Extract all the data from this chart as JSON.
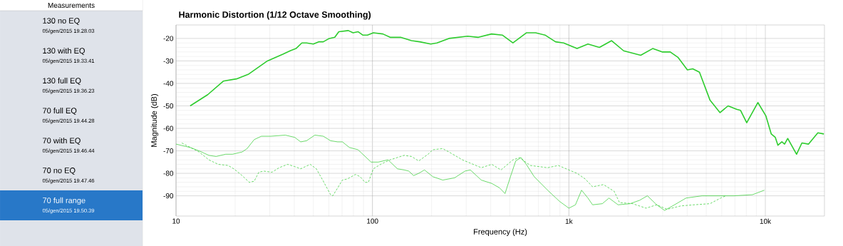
{
  "chart_data": [
    {
      "type": "line",
      "title": "Harmonic Distortion (1/12 Octave Smoothing)",
      "xlabel": "Frequency (Hz)",
      "ylabel": "Magnitude (dB)",
      "log": "x",
      "grid": true,
      "marker": "none",
      "xlim": [
        10,
        20000
      ],
      "ylim": [
        -99,
        -14
      ],
      "xticks": [
        10,
        100,
        {
          "value": 1000,
          "label": "1k"
        },
        {
          "value": 10000,
          "label": "10k"
        }
      ],
      "yticks": [
        -90,
        -80,
        -70,
        -60,
        -50,
        -40,
        -30,
        -20
      ],
      "series": [
        {
          "color": "#2ecc2e",
          "line_style": "solid",
          "x": [
            11.8,
            14.5,
            17.4,
            20.3,
            23.3,
            29.2,
            35,
            38.1,
            40.8,
            43.7,
            46.2,
            50,
            53.2,
            56.2,
            60.3,
            64.3,
            67.4,
            75.4,
            79.7,
            84.4,
            89.2,
            94.3,
            101,
            113,
            123,
            139,
            158,
            174,
            198,
            213,
            245,
            305,
            346,
            404,
            458,
            519,
            607,
            677,
            756,
            855,
            940,
            1100,
            1250,
            1430,
            1650,
            1900,
            2320,
            2670,
            2980,
            3280,
            3600,
            4010,
            4270,
            4620,
            5230,
            5880,
            6460,
            7140,
            7480,
            8040,
            9160,
            10070,
            10720,
            11240,
            11590,
            12140,
            12530,
            13000,
            14420,
            15350,
            16600,
            18510,
            19860
          ],
          "values": [
            -50,
            -45,
            -39,
            -38,
            -36,
            -30,
            -27,
            -25.5,
            -24.5,
            -22,
            -22,
            -22.5,
            -21.5,
            -21.5,
            -20,
            -19.5,
            -17,
            -16.5,
            -17.5,
            -17,
            -18.5,
            -18.5,
            -17.5,
            -18,
            -19.5,
            -19.5,
            -21,
            -21.5,
            -22.5,
            -22,
            -20,
            -19,
            -19.5,
            -18,
            -18.5,
            -22,
            -17.5,
            -17.5,
            -18.5,
            -21.5,
            -22,
            -24.5,
            -22.5,
            -24,
            -21,
            -25.5,
            -27.5,
            -24.5,
            -26,
            -26,
            -28.5,
            -34,
            -33.5,
            -35,
            -47.5,
            -53,
            -50,
            -51.5,
            -52,
            -57.5,
            -48.5,
            -54.5,
            -62.5,
            -64,
            -67.5,
            -66,
            -67,
            -64.5,
            -71.5,
            -66.5,
            -67,
            -62,
            -62.5
          ]
        },
        {
          "color": "#2ecc2e",
          "line_style": "solid",
          "x": [
            10,
            11.8,
            13.1,
            14.7,
            16,
            17.9,
            19.4,
            21.7,
            23,
            25,
            27.2,
            30.4,
            36,
            40.2,
            43.1,
            46.2,
            50.9,
            56.2,
            61.2,
            66.5,
            70.3,
            76.3,
            84.4,
            98.4,
            107,
            120,
            134,
            145,
            153,
            162,
            172,
            184,
            203,
            228,
            262,
            296,
            315,
            358,
            405,
            444,
            473,
            504,
            536,
            570,
            607,
            666,
            779,
            897,
            1000,
            1080,
            1160,
            1250,
            1320,
            1480,
            1600,
            1780,
            2050,
            2290,
            2510,
            2800,
            3070,
            3370,
            3950,
            4760,
            5560,
            6920,
            8600,
            9890
          ],
          "values": [
            -67,
            -68.5,
            -70,
            -72,
            -72.5,
            -71.5,
            -71.5,
            -70.5,
            -69,
            -65,
            -63.5,
            -63.5,
            -63,
            -64,
            -66,
            -65.5,
            -63,
            -63.5,
            -65.5,
            -66,
            -66,
            -68.5,
            -69.5,
            -75,
            -75,
            -74,
            -78,
            -78.5,
            -79,
            -81,
            -80,
            -78.5,
            -81.5,
            -83,
            -82,
            -79,
            -78.5,
            -83,
            -84.5,
            -86.5,
            -89,
            -81.5,
            -74.5,
            -73,
            -76,
            -81.5,
            -87.5,
            -92.5,
            -95.5,
            -94,
            -87.5,
            -91,
            -94,
            -93.5,
            -91,
            -94,
            -93.5,
            -92,
            -90,
            -94,
            -96.5,
            -94.5,
            -91,
            -90,
            -90,
            -90,
            -89.5,
            -87.5
          ]
        },
        {
          "color": "#2ecc2e",
          "line_style": "dashed",
          "x": [
            10.7,
            13.1,
            14.7,
            16.4,
            18.4,
            19.7,
            21.7,
            23.6,
            25,
            26.4,
            27.9,
            30.8,
            33.5,
            37,
            40.2,
            43.1,
            48.2,
            51.8,
            56.2,
            61.2,
            62.8,
            66.5,
            70.3,
            74.5,
            81.9,
            86.6,
            91.6,
            95.3,
            101,
            110,
            123,
            145,
            158,
            172,
            192,
            203,
            228,
            245,
            287,
            358,
            405,
            451,
            519,
            561,
            636,
            779,
            883,
            1000,
            1100,
            1210,
            1320,
            1500,
            1700,
            1810,
            2110,
            2470,
            2800,
            3160,
            3710,
            4330,
            5230,
            5920,
            6300
          ],
          "values": [
            -66.5,
            -70.5,
            -74,
            -76,
            -76.5,
            -78,
            -81,
            -84,
            -83.5,
            -79.5,
            -79,
            -79.5,
            -77.5,
            -76,
            -77,
            -78,
            -76,
            -78,
            -83.5,
            -89.5,
            -90,
            -86.5,
            -83,
            -82.5,
            -80.5,
            -81.5,
            -84,
            -84,
            -78,
            -76,
            -74,
            -72,
            -72.5,
            -74.5,
            -71.5,
            -69.5,
            -69,
            -70.5,
            -74,
            -77.5,
            -76,
            -78.5,
            -74,
            -73,
            -76.5,
            -77.5,
            -76.5,
            -78.5,
            -80,
            -82.5,
            -86,
            -85,
            -88,
            -93,
            -93.5,
            -95.5,
            -94,
            -96,
            -94.5,
            -94,
            -93.5,
            -91,
            -90
          ]
        }
      ]
    },
    {
      "type": "other",
      "title": "Measurements",
      "annotations": [
        "130 no EQ",
        "05/gen/2015 19.28.03",
        "130 with EQ",
        "05/gen/2015 19.33.41",
        "130 full EQ",
        "05/gen/2015 19.36.23",
        "70 full EQ",
        "05/gen/2015 19.44.28",
        "70 with EQ",
        "05/gen/2015 19.46.44",
        "70 no EQ",
        "05/gen/2015 19.47.46",
        "70 full range",
        "05/gen/2015 19.50.39"
      ]
    }
  ]
}
